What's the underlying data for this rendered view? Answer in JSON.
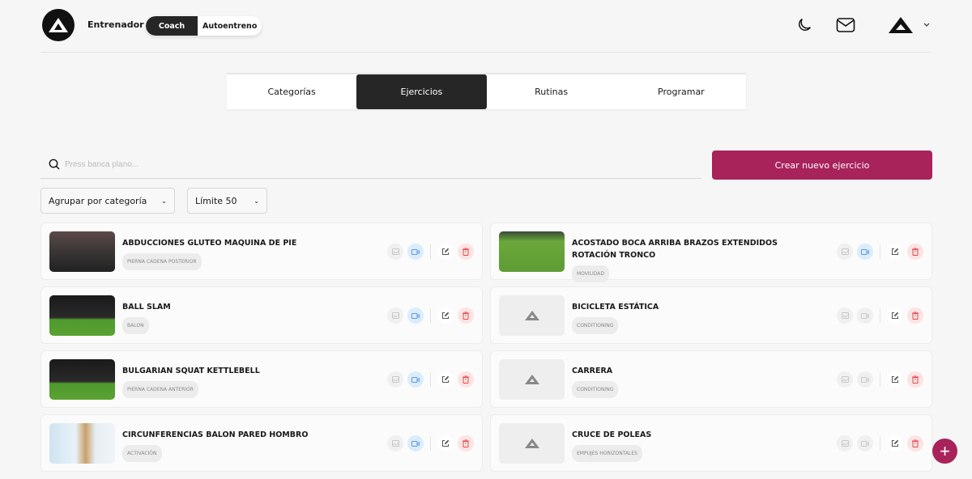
{
  "header": {
    "role": "Entrenador",
    "mode_options": [
      "Coach",
      "Autoentreno"
    ],
    "active_mode": "Coach"
  },
  "tabs": [
    "Categorías",
    "Ejercicios",
    "Rutinas",
    "Programar"
  ],
  "active_tab": "Ejercicios",
  "search": {
    "placeholder": "Press banca plano...",
    "value": ""
  },
  "create_button": "Crear nuevo ejercicio",
  "group_select": "Agrupar por categoría",
  "limit_select": "Límite 50",
  "colors": {
    "accent": "#a8235a",
    "dark": "#262626",
    "video_active": "#dcecfb",
    "delete": "#fde4e4"
  },
  "exercises": [
    {
      "name": "ABDUCCIONES GLUTEO MAQUINA DE PIE",
      "tag": "PIERNA CADENA POSTERIOR",
      "has_image": true,
      "has_video": true,
      "scene": "gym"
    },
    {
      "name": "ACOSTADO BOCA ARRIBA BRAZOS EXTENDIDOS ROTACIÓN TRONCO",
      "tag": "MOVILIDAD",
      "has_image": true,
      "has_video": true,
      "scene": "turf"
    },
    {
      "name": "BALL SLAM",
      "tag": "BALON",
      "has_image": true,
      "has_video": true,
      "scene": "turf-dark"
    },
    {
      "name": "BICICLETA ESTÁTICA",
      "tag": "CONDITIONING",
      "has_image": false,
      "has_video": false
    },
    {
      "name": "BULGARIAN SQUAT KETTLEBELL",
      "tag": "PIERNA CADENA ANTERIOR",
      "has_image": true,
      "has_video": true,
      "scene": "turf-dark"
    },
    {
      "name": "CARRERA",
      "tag": "CONDITIONING",
      "has_image": false,
      "has_video": false
    },
    {
      "name": "CIRCUNFERENCIAS BALON PARED HOMBRO",
      "tag": "ACTIVACIÓN",
      "has_image": true,
      "has_video": true,
      "scene": "wall"
    },
    {
      "name": "CRUCE DE POLEAS",
      "tag": "EMPUJES HORIZONTALES",
      "has_image": false,
      "has_video": false
    }
  ]
}
